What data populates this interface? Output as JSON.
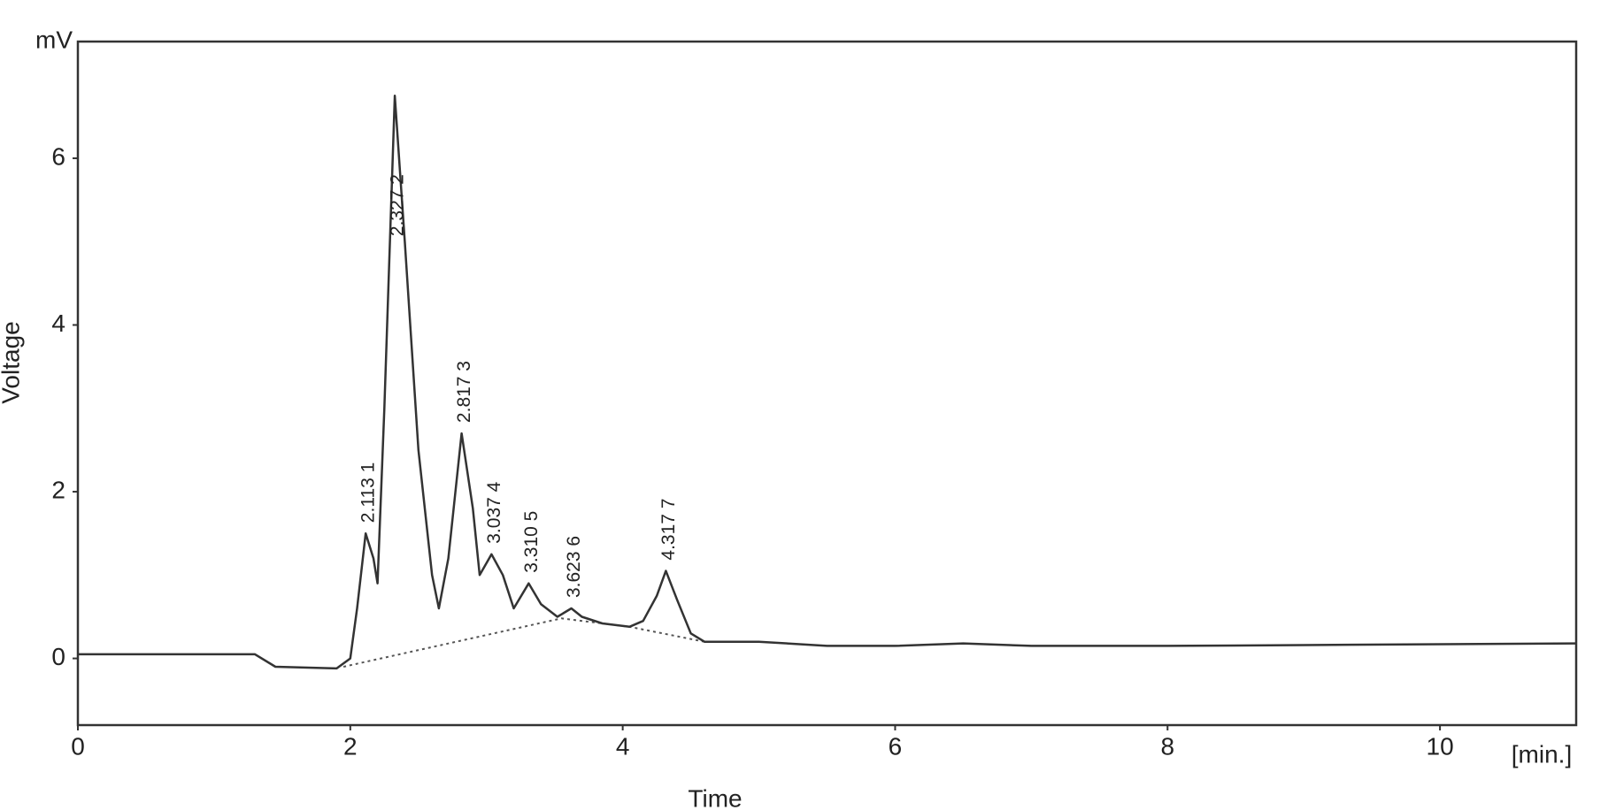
{
  "chart_data": {
    "type": "line",
    "y_unit": "mV",
    "y_label": "Voltage",
    "x_label": "Time",
    "x_unit": "[min.]",
    "x": [
      0,
      1.3,
      1.45,
      1.9,
      2.0,
      2.05,
      2.113,
      2.17,
      2.2,
      2.25,
      2.327,
      2.4,
      2.5,
      2.6,
      2.65,
      2.72,
      2.817,
      2.9,
      2.95,
      3.037,
      3.12,
      3.2,
      3.31,
      3.4,
      3.52,
      3.623,
      3.7,
      3.85,
      4.05,
      4.15,
      4.25,
      4.317,
      4.4,
      4.5,
      4.6,
      5.0,
      5.5,
      6.0,
      6.5,
      7.0,
      8.0,
      9.0,
      11
    ],
    "values": [
      0.05,
      0.05,
      -0.1,
      -0.12,
      0.0,
      0.6,
      1.5,
      1.2,
      0.9,
      3.0,
      6.75,
      5.0,
      2.5,
      1.0,
      0.6,
      1.2,
      2.7,
      1.8,
      1.0,
      1.25,
      1.0,
      0.6,
      0.9,
      0.65,
      0.5,
      0.6,
      0.5,
      0.42,
      0.38,
      0.45,
      0.75,
      1.05,
      0.7,
      0.3,
      0.2,
      0.2,
      0.15,
      0.15,
      0.18,
      0.15,
      0.15,
      0.16,
      0.18
    ],
    "color": "#333333",
    "baseline": {
      "x": [
        1.95,
        3.55,
        4.05,
        4.6
      ],
      "values": [
        -0.1,
        0.48,
        0.38,
        0.2
      ]
    },
    "annotations": [
      {
        "text": "2.113  1",
        "x": 2.113
      },
      {
        "text": "2.327  2",
        "x": 2.327
      },
      {
        "text": "2.817  3",
        "x": 2.817
      },
      {
        "text": "3.037  4",
        "x": 3.037
      },
      {
        "text": "3.310  5",
        "x": 3.31
      },
      {
        "text": "3.623  6",
        "x": 3.623
      },
      {
        "text": "4.317  7",
        "x": 4.317
      }
    ],
    "xlim": [
      0,
      11
    ],
    "xticks": [
      0,
      2,
      4,
      6,
      8,
      10
    ],
    "ylim": [
      -0.8,
      7.4
    ],
    "yticks": [
      0,
      2,
      4,
      6
    ]
  }
}
